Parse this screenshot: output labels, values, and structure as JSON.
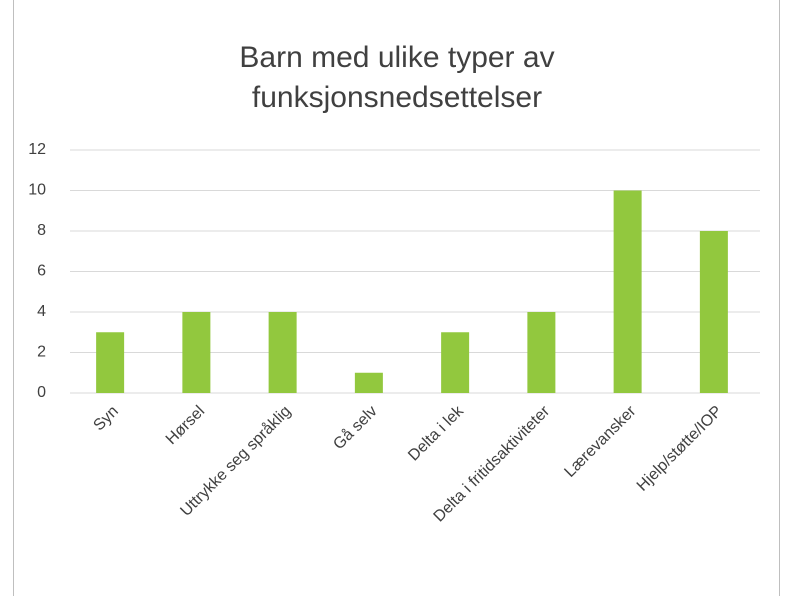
{
  "chart_data": {
    "type": "bar",
    "title": "Barn med ulike typer av funksjonsnedsettelser",
    "categories": [
      "Syn",
      "Hørsel",
      "Uttrykke seg språklig",
      "Gå selv",
      "Delta i lek",
      "Delta i fritidsaktiviteter",
      "Lærevansker",
      "Hjelp/støtte/IOP"
    ],
    "values": [
      3,
      4,
      4,
      1,
      3,
      4,
      10,
      8
    ],
    "color": "#92c83e",
    "ylim": [
      0,
      12
    ],
    "yticks": [
      0,
      2,
      4,
      6,
      8,
      10,
      12
    ],
    "grid": true
  }
}
